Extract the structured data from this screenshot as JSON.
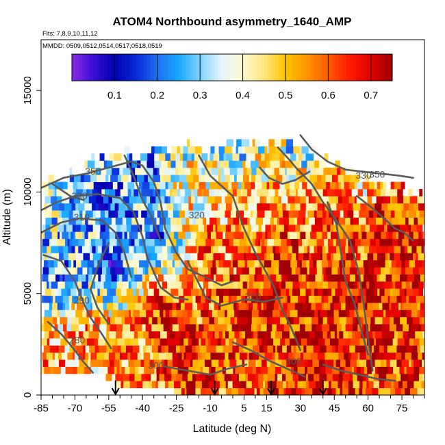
{
  "chart_data": {
    "type": "heatmap",
    "title": "ATOM4 Northbound asymmetry_1640_AMP",
    "subtitle_lines": [
      "Flts: 7,8,9,10,11,12",
      "MMDD: 0509,0512,0514,0517,0518,0519"
    ],
    "xlabel": "Latitude (deg N)",
    "ylabel": "Altitude (m)",
    "xlim": [
      -85,
      85
    ],
    "ylim": [
      0,
      17500
    ],
    "x_ticks": [
      -85,
      -70,
      -55,
      -40,
      -25,
      -10,
      5,
      15,
      30,
      45,
      60,
      75
    ],
    "y_ticks": [
      0,
      5000,
      10000,
      15000
    ],
    "colorbar": {
      "min": 0.0,
      "max": 0.75,
      "ticks": [
        0.1,
        0.2,
        0.3,
        0.4,
        0.5,
        0.6,
        0.7
      ],
      "colors": [
        "#8a2be2",
        "#3a0fd6",
        "#0000b0",
        "#0a2ad8",
        "#1f6ff0",
        "#16a8ff",
        "#7fd3ff",
        "#e6f6ff",
        "#fffacd",
        "#ffe680",
        "#ffc400",
        "#ff9500",
        "#ff5a00",
        "#ff1a00",
        "#e00000",
        "#a00000"
      ]
    },
    "surface_profile": [
      {
        "lat": -80,
        "bottom": 1000,
        "top": 10500
      },
      {
        "lat": -70,
        "bottom": 1000,
        "top": 11000
      },
      {
        "lat": -60,
        "bottom": 900,
        "top": 11700
      },
      {
        "lat": -50,
        "bottom": 200,
        "top": 11800
      },
      {
        "lat": -40,
        "bottom": 100,
        "top": 12000
      },
      {
        "lat": -25,
        "bottom": 0,
        "top": 12200
      },
      {
        "lat": -10,
        "bottom": 0,
        "top": 12200
      },
      {
        "lat": 5,
        "bottom": 0,
        "top": 12300
      },
      {
        "lat": 15,
        "bottom": 0,
        "top": 12400
      },
      {
        "lat": 25,
        "bottom": 0,
        "top": 12800
      },
      {
        "lat": 35,
        "bottom": 0,
        "top": 12000
      },
      {
        "lat": 45,
        "bottom": 0,
        "top": 11300
      },
      {
        "lat": 55,
        "bottom": 0,
        "top": 10800
      },
      {
        "lat": 65,
        "bottom": 0,
        "top": 10500
      },
      {
        "lat": 75,
        "bottom": 0,
        "top": 10300
      },
      {
        "lat": 80,
        "bottom": 0,
        "top": 9800
      }
    ],
    "value_zones": [
      {
        "lat": -85,
        "alt": 8000,
        "value": 0.3
      },
      {
        "lat": -75,
        "alt": 5500,
        "value": 0.2
      },
      {
        "lat": -80,
        "alt": 2000,
        "value": 0.55
      },
      {
        "lat": -65,
        "alt": 3000,
        "value": 0.55
      },
      {
        "lat": -55,
        "alt": 9000,
        "value": 0.2
      },
      {
        "lat": -55,
        "alt": 6000,
        "value": 0.12
      },
      {
        "lat": -50,
        "alt": 2500,
        "value": 0.6
      },
      {
        "lat": -40,
        "alt": 11000,
        "value": 0.22
      },
      {
        "lat": -35,
        "alt": 7500,
        "value": 0.15
      },
      {
        "lat": -30,
        "alt": 4000,
        "value": 0.7
      },
      {
        "lat": -20,
        "alt": 1500,
        "value": 0.72
      },
      {
        "lat": -15,
        "alt": 10000,
        "value": 0.45
      },
      {
        "lat": -10,
        "alt": 7000,
        "value": 0.6
      },
      {
        "lat": 0,
        "alt": 12000,
        "value": 0.3
      },
      {
        "lat": 5,
        "alt": 4000,
        "value": 0.72
      },
      {
        "lat": 15,
        "alt": 9000,
        "value": 0.55
      },
      {
        "lat": 25,
        "alt": 6000,
        "value": 0.7
      },
      {
        "lat": 30,
        "alt": 12000,
        "value": 0.3
      },
      {
        "lat": 35,
        "alt": 2000,
        "value": 0.72
      },
      {
        "lat": 45,
        "alt": 10000,
        "value": 0.6
      },
      {
        "lat": 55,
        "alt": 5000,
        "value": 0.68
      },
      {
        "lat": 60,
        "alt": 11000,
        "value": 0.35
      },
      {
        "lat": 70,
        "alt": 8000,
        "value": 0.72
      },
      {
        "lat": 78,
        "alt": 3000,
        "value": 0.65
      }
    ],
    "contour_labels": [
      {
        "text": "350",
        "lat": -62,
        "alt": 10850
      },
      {
        "text": "330",
        "lat": -68,
        "alt": 9650
      },
      {
        "text": "310",
        "lat": -67,
        "alt": 8600
      },
      {
        "text": "320",
        "lat": -16,
        "alt": 8700
      },
      {
        "text": "290",
        "lat": -67,
        "alt": 4500
      },
      {
        "text": "280",
        "lat": -69,
        "alt": 2550
      },
      {
        "text": "300",
        "lat": -34,
        "alt": 1300
      },
      {
        "text": "320",
        "lat": 9,
        "alt": 4700
      },
      {
        "text": "300",
        "lat": 27,
        "alt": 1500
      },
      {
        "text": "330",
        "lat": 58,
        "alt": 10650
      },
      {
        "text": "350",
        "lat": 64,
        "alt": 10700
      }
    ],
    "contours": [
      [
        [
          -85,
          10200
        ],
        [
          -75,
          10700
        ],
        [
          -65,
          10900
        ],
        [
          -55,
          11200
        ],
        [
          -45,
          11500
        ],
        [
          -40,
          11300
        ],
        [
          -35,
          10500
        ],
        [
          -32,
          9500
        ],
        [
          -30,
          8200
        ],
        [
          -25,
          7000
        ],
        [
          -20,
          6200
        ],
        [
          -12,
          5800
        ],
        [
          -5,
          5400
        ],
        [
          0,
          5600
        ]
      ],
      [
        [
          -85,
          9100
        ],
        [
          -78,
          9500
        ],
        [
          -70,
          9800
        ],
        [
          -60,
          9900
        ],
        [
          -50,
          9700
        ],
        [
          -44,
          9000
        ],
        [
          -40,
          7800
        ],
        [
          -38,
          6800
        ],
        [
          -32,
          5300
        ],
        [
          -26,
          4800
        ],
        [
          -20,
          4700
        ]
      ],
      [
        [
          -85,
          8000
        ],
        [
          -76,
          8500
        ],
        [
          -68,
          8700
        ],
        [
          -58,
          8600
        ],
        [
          -52,
          8000
        ],
        [
          -48,
          7000
        ],
        [
          -45,
          5800
        ]
      ],
      [
        [
          -84,
          6900
        ],
        [
          -76,
          6600
        ],
        [
          -70,
          5600
        ],
        [
          -66,
          4500
        ],
        [
          -63,
          3800
        ],
        [
          -58,
          3000
        ],
        [
          -54,
          2300
        ]
      ],
      [
        [
          -82,
          3600
        ],
        [
          -76,
          3000
        ],
        [
          -70,
          2200
        ],
        [
          -66,
          1600
        ],
        [
          -62,
          1100
        ]
      ],
      [
        [
          -30,
          1400
        ],
        [
          -20,
          1200
        ],
        [
          -10,
          1000
        ],
        [
          -2,
          1300
        ],
        [
          6,
          1500
        ]
      ],
      [
        [
          -55,
          7500
        ],
        [
          -60,
          6300
        ],
        [
          -63,
          5200
        ],
        [
          -60,
          4300
        ],
        [
          -55,
          3500
        ]
      ],
      [
        [
          -48,
          11800
        ],
        [
          -44,
          10800
        ],
        [
          -40,
          9600
        ],
        [
          -36,
          8800
        ],
        [
          -32,
          7600
        ]
      ],
      [
        [
          -15,
          11800
        ],
        [
          -10,
          10800
        ],
        [
          -5,
          10300
        ],
        [
          0,
          9800
        ],
        [
          5,
          8200
        ],
        [
          10,
          7000
        ],
        [
          18,
          5400
        ],
        [
          22,
          4200
        ],
        [
          26,
          3300
        ],
        [
          30,
          2200
        ]
      ],
      [
        [
          20,
          12200
        ],
        [
          25,
          11600
        ],
        [
          28,
          11200
        ],
        [
          35,
          10400
        ],
        [
          40,
          9500
        ],
        [
          46,
          8600
        ],
        [
          52,
          7600
        ],
        [
          56,
          6000
        ],
        [
          58,
          4500
        ],
        [
          60,
          2800
        ],
        [
          62,
          1200
        ]
      ],
      [
        [
          30,
          12800
        ],
        [
          35,
          12100
        ],
        [
          42,
          11500
        ],
        [
          50,
          11100
        ],
        [
          58,
          11000
        ],
        [
          66,
          10900
        ],
        [
          74,
          10800
        ],
        [
          80,
          10700
        ]
      ],
      [
        [
          42,
          9500
        ],
        [
          46,
          8400
        ],
        [
          48,
          7000
        ],
        [
          50,
          5600
        ],
        [
          54,
          4500
        ],
        [
          57,
          3200
        ],
        [
          60,
          2000
        ]
      ],
      [
        [
          55,
          9800
        ],
        [
          62,
          9200
        ],
        [
          68,
          8600
        ],
        [
          72,
          8200
        ],
        [
          76,
          8000
        ],
        [
          80,
          7600
        ]
      ],
      [
        [
          -20,
          6600
        ],
        [
          -12,
          4800
        ],
        [
          -5,
          4400
        ],
        [
          5,
          4700
        ],
        [
          14,
          4600
        ],
        [
          22,
          4800
        ]
      ],
      [
        [
          0,
          2600
        ],
        [
          8,
          2200
        ],
        [
          16,
          1700
        ],
        [
          24,
          1300
        ],
        [
          32,
          900
        ]
      ],
      [
        [
          40,
          1500
        ],
        [
          48,
          1200
        ],
        [
          56,
          1000
        ],
        [
          64,
          800
        ],
        [
          72,
          700
        ]
      ],
      [
        [
          -80,
          10400
        ],
        [
          -76,
          10100
        ],
        [
          -72,
          9800
        ],
        [
          -66,
          9600
        ]
      ],
      [
        [
          12,
          11200
        ],
        [
          16,
          10700
        ],
        [
          22,
          10400
        ],
        [
          28,
          10600
        ],
        [
          34,
          11000
        ]
      ]
    ],
    "arrows_at_lat": [
      -52,
      -8,
      17,
      40
    ]
  }
}
